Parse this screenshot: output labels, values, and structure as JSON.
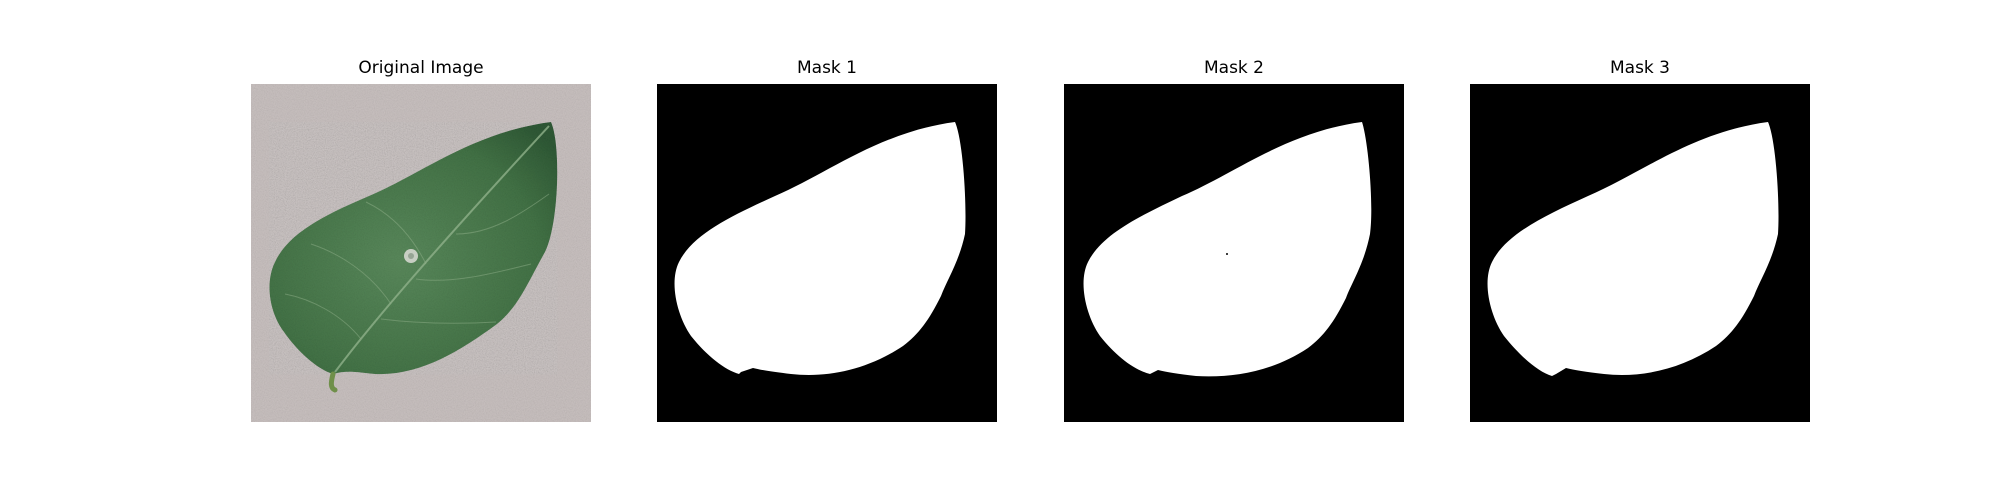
{
  "figure": {
    "panels": [
      {
        "title": "Original Image",
        "kind": "photo",
        "subject": "leaf-photo"
      },
      {
        "title": "Mask 1",
        "kind": "mask",
        "subject": "leaf-mask"
      },
      {
        "title": "Mask 2",
        "kind": "mask",
        "subject": "leaf-mask"
      },
      {
        "title": "Mask 3",
        "kind": "mask",
        "subject": "leaf-mask"
      }
    ],
    "colors": {
      "background": "#ffffff",
      "photo_background": "#c9c1c0",
      "leaf": "#4a7a4e",
      "leaf_dark": "#2f5a36",
      "leaf_vein": "#8fb08a",
      "mask_foreground": "#ffffff",
      "mask_background": "#000000"
    }
  }
}
